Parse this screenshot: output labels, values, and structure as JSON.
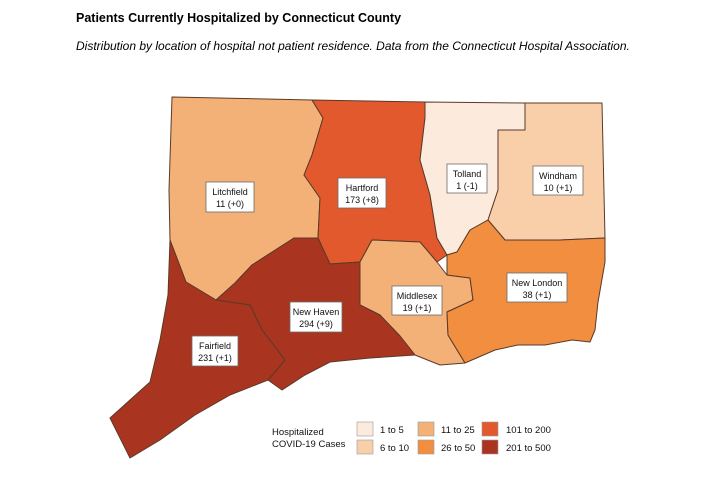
{
  "header": {
    "title": "Patients Currently Hospitalized by Connecticut County",
    "subtitle": "Distribution by location of hospital not patient residence. Data from the Connecticut Hospital Association."
  },
  "counties": [
    {
      "name": "Litchfield",
      "value": "11 (+0)",
      "color": "#f3b177"
    },
    {
      "name": "Hartford",
      "value": "173 (+8)",
      "color": "#e3592e"
    },
    {
      "name": "Tolland",
      "value": "1 (-1)",
      "color": "#fcebdd"
    },
    {
      "name": "Windham",
      "value": "10 (+1)",
      "color": "#f8cfa8"
    },
    {
      "name": "Middlesex",
      "value": "19 (+1)",
      "color": "#f3b177"
    },
    {
      "name": "New London",
      "value": "38 (+1)",
      "color": "#f28e3f"
    },
    {
      "name": "New Haven",
      "value": "294 (+9)",
      "color": "#a93521"
    },
    {
      "name": "Fairfield",
      "value": "231 (+1)",
      "color": "#a93521"
    }
  ],
  "legend": {
    "title_line1": "Hospitalized",
    "title_line2": "COVID-19 Cases",
    "items": [
      {
        "label": "1 to 5",
        "color": "#fcebdd"
      },
      {
        "label": "6 to 10",
        "color": "#f8cfa8"
      },
      {
        "label": "11 to 25",
        "color": "#f3b177"
      },
      {
        "label": "26 to 50",
        "color": "#f28e3f"
      },
      {
        "label": "101 to 200",
        "color": "#e3592e"
      },
      {
        "label": "201 to 500",
        "color": "#a93521"
      }
    ]
  }
}
